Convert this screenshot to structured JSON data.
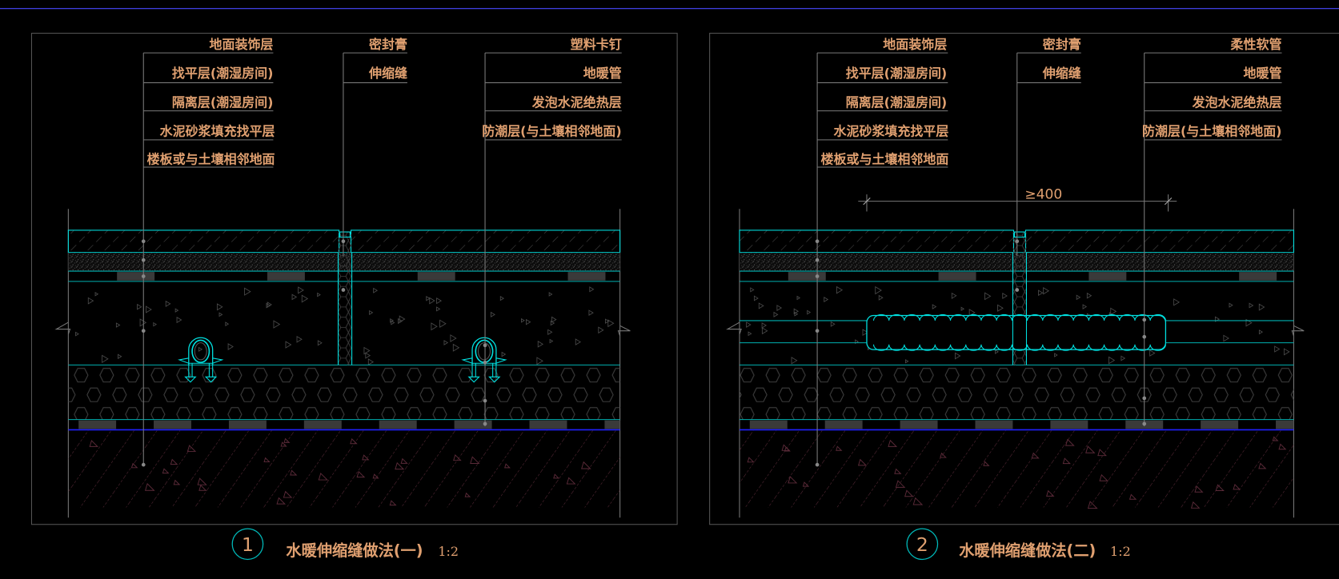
{
  "colors": {
    "background": "#000000",
    "text": "#e0a070",
    "layer_outline": "#00e0e0",
    "leader": "#7a7a7a",
    "hatch": "#4a4a4a",
    "soil": "#5a2a38",
    "waterproof_line": "#2020ff",
    "top_border": "#4848ff"
  },
  "details": [
    {
      "number": "1",
      "title": "水暖伸缩缝做法(一)",
      "scale": "1:2",
      "left_labels": [
        "地面装饰层",
        "找平层(潮湿房间)",
        "隔离层(潮湿房间)",
        "水泥砂浆填充找平层",
        "楼板或与土壤相邻地面"
      ],
      "middle_labels": [
        "密封膏",
        "伸缩缝"
      ],
      "right_labels": [
        "塑料卡钉",
        "地暖管",
        "发泡水泥绝热层",
        "防潮层(与土壤相邻地面)"
      ]
    },
    {
      "number": "2",
      "title": "水暖伸缩缝做法(二)",
      "scale": "1:2",
      "dimension": "≥400",
      "left_labels": [
        "地面装饰层",
        "找平层(潮湿房间)",
        "隔离层(潮湿房间)",
        "水泥砂浆填充找平层",
        "楼板或与土壤相邻地面"
      ],
      "middle_labels": [
        "密封膏",
        "伸缩缝"
      ],
      "right_labels": [
        "柔性软管",
        "地暖管",
        "发泡水泥绝热层",
        "防潮层(与土壤相邻地面)"
      ]
    }
  ]
}
